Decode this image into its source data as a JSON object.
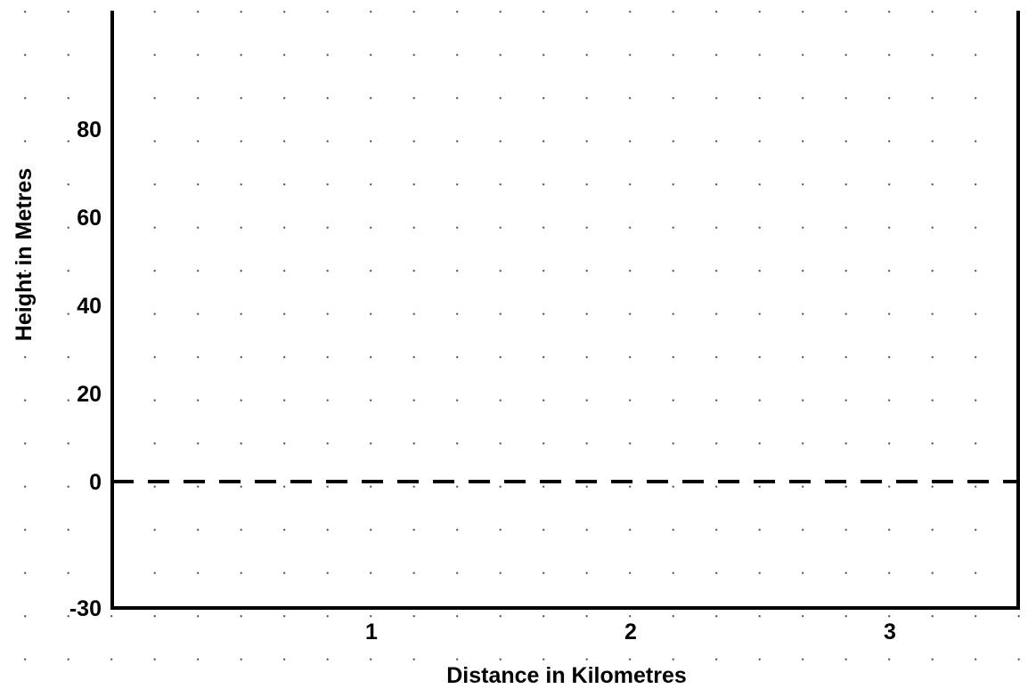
{
  "chart_data": {
    "type": "line",
    "title": "",
    "xlabel": "Distance in Kilometres",
    "ylabel": "Height in Metres",
    "xlim": [
      0,
      3.5
    ],
    "ylim": [
      -30,
      100
    ],
    "x_ticks": [
      1,
      2,
      3
    ],
    "x_tick_labels": [
      "1",
      "2",
      "3"
    ],
    "y_ticks": [
      80,
      60,
      40,
      20,
      0,
      -30
    ],
    "y_tick_labels": [
      "80",
      "60",
      "40",
      "20",
      "0",
      "-30"
    ],
    "reference_line": {
      "y": 0,
      "style": "dashed"
    },
    "series": [],
    "grid": "dotted",
    "legend": "none"
  }
}
